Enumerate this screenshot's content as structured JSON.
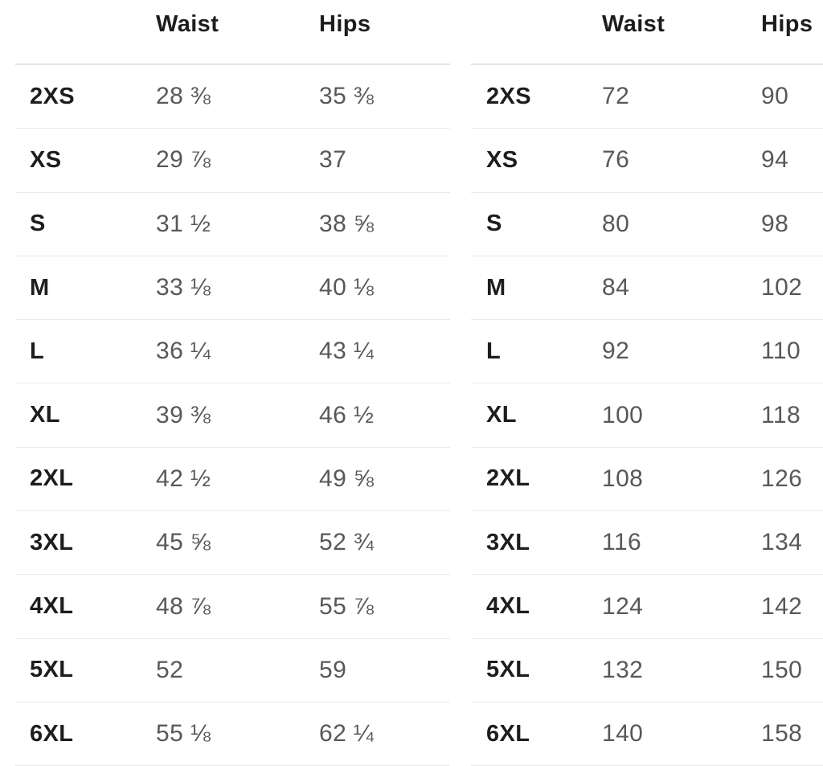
{
  "colors": {
    "background": "#ffffff",
    "heading_text": "#1d1d1f",
    "value_text": "#58585b",
    "header_divider": "#e2e2e2",
    "row_divider": "#e9e9e9"
  },
  "size_chart": {
    "tables": [
      {
        "name": "imperial",
        "columns": {
          "size": "",
          "waist": "Waist",
          "hips": "Hips"
        },
        "rows": [
          {
            "size": "2XS",
            "waist": "28 ⅜",
            "hips": "35 ⅜"
          },
          {
            "size": "XS",
            "waist": "29 ⅞",
            "hips": "37"
          },
          {
            "size": "S",
            "waist": "31 ½",
            "hips": "38 ⅝"
          },
          {
            "size": "M",
            "waist": "33 ⅛",
            "hips": "40 ⅛"
          },
          {
            "size": "L",
            "waist": "36 ¼",
            "hips": "43 ¼"
          },
          {
            "size": "XL",
            "waist": "39 ⅜",
            "hips": "46 ½"
          },
          {
            "size": "2XL",
            "waist": "42 ½",
            "hips": "49 ⅝"
          },
          {
            "size": "3XL",
            "waist": "45 ⅝",
            "hips": "52 ¾"
          },
          {
            "size": "4XL",
            "waist": "48 ⅞",
            "hips": "55 ⅞"
          },
          {
            "size": "5XL",
            "waist": "52",
            "hips": "59"
          },
          {
            "size": "6XL",
            "waist": "55 ⅛",
            "hips": "62 ¼"
          }
        ]
      },
      {
        "name": "metric",
        "columns": {
          "size": "",
          "waist": "Waist",
          "hips": "Hips"
        },
        "rows": [
          {
            "size": "2XS",
            "waist": "72",
            "hips": "90"
          },
          {
            "size": "XS",
            "waist": "76",
            "hips": "94"
          },
          {
            "size": "S",
            "waist": "80",
            "hips": "98"
          },
          {
            "size": "M",
            "waist": "84",
            "hips": "102"
          },
          {
            "size": "L",
            "waist": "92",
            "hips": "110"
          },
          {
            "size": "XL",
            "waist": "100",
            "hips": "118"
          },
          {
            "size": "2XL",
            "waist": "108",
            "hips": "126"
          },
          {
            "size": "3XL",
            "waist": "116",
            "hips": "134"
          },
          {
            "size": "4XL",
            "waist": "124",
            "hips": "142"
          },
          {
            "size": "5XL",
            "waist": "132",
            "hips": "150"
          },
          {
            "size": "6XL",
            "waist": "140",
            "hips": "158"
          }
        ]
      }
    ]
  }
}
